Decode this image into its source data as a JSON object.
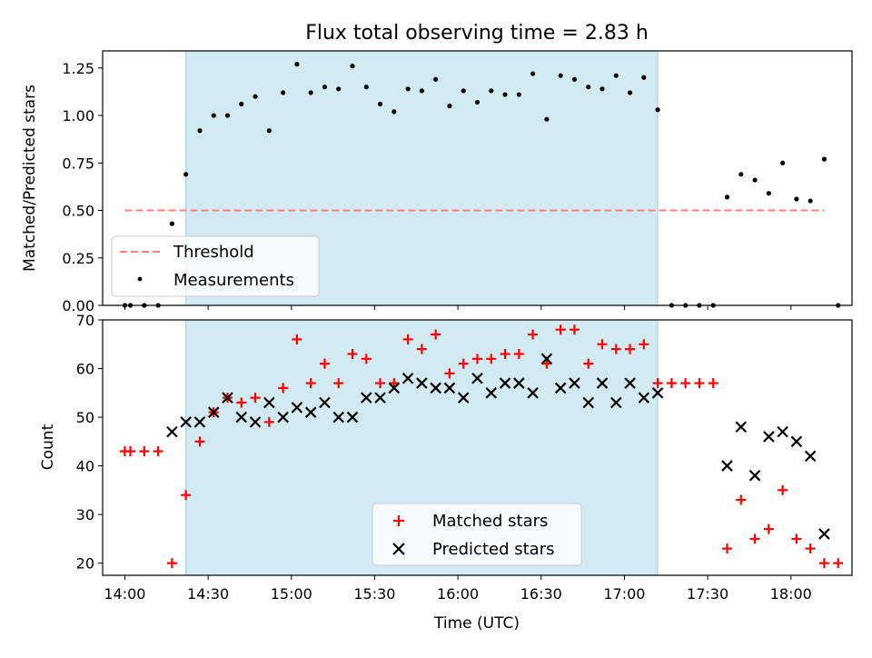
{
  "title": "Flux total observing time = 2.83 h",
  "chart_data": [
    {
      "type": "scatter",
      "panel": "top",
      "ylabel": "Matched/Predicted stars",
      "ylim": [
        0,
        1.34
      ],
      "xlim": [
        "13:52",
        "18:22"
      ],
      "yticks": [
        0.0,
        0.25,
        0.5,
        0.75,
        1.0,
        1.25
      ],
      "ytick_labels": [
        "0.00",
        "0.25",
        "0.50",
        "0.75",
        "1.00",
        "1.25"
      ],
      "shaded_span": [
        "14:22",
        "17:12"
      ],
      "shade_color": "#add8e6",
      "legend": {
        "placement": "lower-left",
        "entries": [
          {
            "label": "Threshold",
            "marker": "dashed-line",
            "color": "#ff7f7f"
          },
          {
            "label": "Measurements",
            "marker": "dot",
            "color": "#000000"
          }
        ]
      },
      "threshold": {
        "name": "Threshold",
        "value": 0.5,
        "x_range": [
          "14:00",
          "18:12"
        ],
        "color": "#ff7f7f",
        "style": "dashed"
      },
      "series": [
        {
          "name": "Measurements",
          "marker": "dot",
          "color": "#000000",
          "x": [
            "14:00",
            "14:02",
            "14:07",
            "14:12",
            "14:17",
            "14:22",
            "14:27",
            "14:32",
            "14:37",
            "14:42",
            "14:47",
            "14:52",
            "14:57",
            "15:02",
            "15:07",
            "15:12",
            "15:17",
            "15:22",
            "15:27",
            "15:32",
            "15:37",
            "15:42",
            "15:47",
            "15:52",
            "15:57",
            "16:02",
            "16:07",
            "16:12",
            "16:17",
            "16:22",
            "16:27",
            "16:32",
            "16:37",
            "16:42",
            "16:47",
            "16:52",
            "16:57",
            "17:02",
            "17:07",
            "17:12",
            "17:17",
            "17:22",
            "17:27",
            "17:32",
            "17:37",
            "17:42",
            "17:47",
            "17:52",
            "17:57",
            "18:02",
            "18:07",
            "18:12",
            "18:17"
          ],
          "y": [
            0.0,
            0.0,
            0.0,
            0.0,
            0.43,
            0.69,
            0.92,
            1.0,
            1.0,
            1.06,
            1.1,
            0.92,
            1.12,
            1.27,
            1.12,
            1.15,
            1.14,
            1.26,
            1.15,
            1.06,
            1.02,
            1.14,
            1.13,
            1.19,
            1.05,
            1.13,
            1.07,
            1.13,
            1.11,
            1.11,
            1.22,
            0.98,
            1.21,
            1.19,
            1.15,
            1.14,
            1.21,
            1.12,
            1.2,
            1.03,
            0.0,
            0.0,
            0.0,
            0.0,
            0.57,
            0.69,
            0.66,
            0.59,
            0.75,
            0.56,
            0.55,
            0.77,
            0.0
          ]
        }
      ]
    },
    {
      "type": "scatter",
      "panel": "bottom",
      "title": "",
      "xlabel": "Time (UTC)",
      "ylabel": "Count",
      "ylim": [
        17.5,
        70
      ],
      "xlim": [
        "13:52",
        "18:22"
      ],
      "yticks": [
        20,
        30,
        40,
        50,
        60,
        70
      ],
      "xticks": [
        "14:00",
        "14:30",
        "15:00",
        "15:30",
        "16:00",
        "16:30",
        "17:00",
        "17:30",
        "18:00"
      ],
      "shaded_span": [
        "14:22",
        "17:12"
      ],
      "shade_color": "#add8e6",
      "legend": {
        "placement": "lower-center",
        "entries": [
          {
            "label": "Matched stars",
            "marker": "plus",
            "color": "#ff0000"
          },
          {
            "label": "Predicted stars",
            "marker": "x",
            "color": "#000000"
          }
        ]
      },
      "series": [
        {
          "name": "Matched stars",
          "marker": "plus",
          "color": "#ff0000",
          "x": [
            "14:00",
            "14:02",
            "14:07",
            "14:12",
            "14:17",
            "14:22",
            "14:27",
            "14:32",
            "14:37",
            "14:42",
            "14:47",
            "14:52",
            "14:57",
            "15:02",
            "15:07",
            "15:12",
            "15:17",
            "15:22",
            "15:27",
            "15:32",
            "15:37",
            "15:42",
            "15:47",
            "15:52",
            "15:57",
            "16:02",
            "16:07",
            "16:12",
            "16:17",
            "16:22",
            "16:27",
            "16:32",
            "16:37",
            "16:42",
            "16:47",
            "16:52",
            "16:57",
            "17:02",
            "17:07",
            "17:12",
            "17:17",
            "17:22",
            "17:27",
            "17:32",
            "17:37",
            "17:42",
            "17:47",
            "17:52",
            "17:57",
            "18:02",
            "18:07",
            "18:12",
            "18:17"
          ],
          "y": [
            43,
            43,
            43,
            43,
            20,
            34,
            45,
            51,
            54,
            53,
            54,
            49,
            56,
            66,
            57,
            61,
            57,
            63,
            62,
            57,
            57,
            66,
            64,
            67,
            59,
            61,
            62,
            62,
            63,
            63,
            67,
            61,
            68,
            68,
            61,
            65,
            64,
            64,
            65,
            57,
            57,
            57,
            57,
            57,
            23,
            33,
            25,
            27,
            35,
            25,
            23,
            20,
            20
          ]
        },
        {
          "name": "Predicted stars",
          "marker": "x",
          "color": "#000000",
          "x": [
            "14:17",
            "14:22",
            "14:27",
            "14:32",
            "14:37",
            "14:42",
            "14:47",
            "14:52",
            "14:57",
            "15:02",
            "15:07",
            "15:12",
            "15:17",
            "15:22",
            "15:27",
            "15:32",
            "15:37",
            "15:42",
            "15:47",
            "15:52",
            "15:57",
            "16:02",
            "16:07",
            "16:12",
            "16:17",
            "16:22",
            "16:27",
            "16:32",
            "16:37",
            "16:42",
            "16:47",
            "16:52",
            "16:57",
            "17:02",
            "17:07",
            "17:12",
            "17:37",
            "17:42",
            "17:47",
            "17:52",
            "17:57",
            "18:02",
            "18:07",
            "18:12"
          ],
          "y": [
            47,
            49,
            49,
            51,
            54,
            50,
            49,
            53,
            50,
            52,
            51,
            53,
            50,
            50,
            54,
            54,
            56,
            58,
            57,
            56,
            56,
            54,
            58,
            55,
            57,
            57,
            55,
            62,
            56,
            57,
            53,
            57,
            53,
            57,
            54,
            55,
            40,
            48,
            38,
            46,
            47,
            45,
            42,
            26
          ]
        }
      ]
    }
  ]
}
